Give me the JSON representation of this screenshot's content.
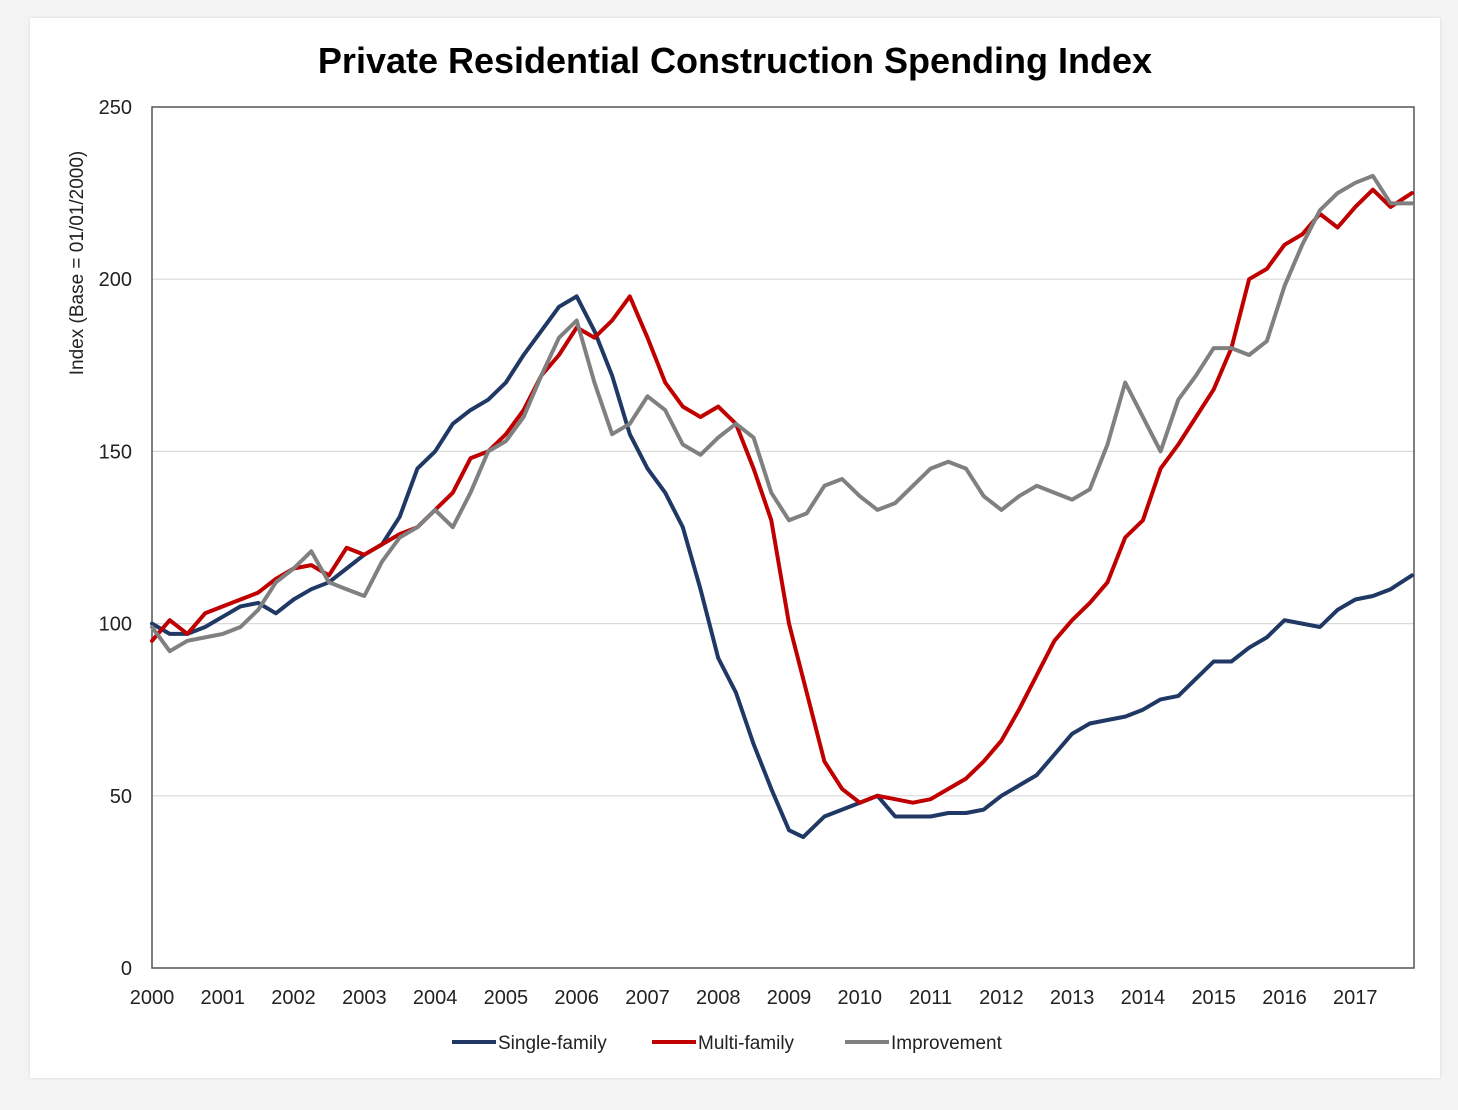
{
  "chart_data": {
    "type": "line",
    "title": "Private Residential Construction Spending Index",
    "xlabel": "",
    "ylabel": "Index  (Base = 01/01/2000)",
    "xlim": [
      2000,
      2017.83
    ],
    "ylim": [
      0,
      250
    ],
    "yticks": [
      "0",
      "50",
      "100",
      "150",
      "200",
      "250"
    ],
    "ytick_values": [
      0,
      50,
      100,
      150,
      200,
      250
    ],
    "xticks": [
      "2000",
      "2001",
      "2002",
      "2003",
      "2004",
      "2005",
      "2006",
      "2007",
      "2008",
      "2009",
      "2010",
      "2011",
      "2012",
      "2013",
      "2014",
      "2015",
      "2016",
      "2017"
    ],
    "grid": "horizontal",
    "legend_position": "bottom",
    "series": [
      {
        "name": "Single-family",
        "color": "#1f3864",
        "x": [
          2000,
          2000.25,
          2000.5,
          2000.75,
          2001,
          2001.25,
          2001.5,
          2001.75,
          2002,
          2002.25,
          2002.5,
          2002.75,
          2003,
          2003.25,
          2003.5,
          2003.75,
          2004,
          2004.25,
          2004.5,
          2004.75,
          2005,
          2005.25,
          2005.5,
          2005.75,
          2006,
          2006.25,
          2006.5,
          2006.75,
          2007,
          2007.25,
          2007.5,
          2007.75,
          2008,
          2008.25,
          2008.5,
          2008.75,
          2009,
          2009.2,
          2009.5,
          2009.75,
          2010,
          2010.25,
          2010.5,
          2010.75,
          2011,
          2011.25,
          2011.5,
          2011.75,
          2012,
          2012.25,
          2012.5,
          2012.75,
          2013,
          2013.25,
          2013.5,
          2013.75,
          2014,
          2014.25,
          2014.5,
          2014.75,
          2015,
          2015.25,
          2015.5,
          2015.75,
          2016,
          2016.25,
          2016.5,
          2016.75,
          2017,
          2017.25,
          2017.5,
          2017.8
        ],
        "y": [
          100,
          97,
          97,
          99,
          102,
          105,
          106,
          103,
          107,
          110,
          112,
          116,
          120,
          123,
          131,
          145,
          150,
          158,
          162,
          165,
          170,
          178,
          185,
          192,
          195,
          185,
          172,
          155,
          145,
          138,
          128,
          110,
          90,
          80,
          65,
          52,
          40,
          38,
          44,
          46,
          48,
          50,
          44,
          44,
          44,
          45,
          45,
          46,
          50,
          53,
          56,
          62,
          68,
          71,
          72,
          73,
          75,
          78,
          79,
          84,
          89,
          89,
          93,
          96,
          101,
          100,
          99,
          104,
          107,
          108,
          110,
          114
        ]
      },
      {
        "name": "Multi-family",
        "color": "#c00000",
        "x": [
          2000,
          2000.25,
          2000.5,
          2000.75,
          2001,
          2001.25,
          2001.5,
          2001.75,
          2002,
          2002.25,
          2002.5,
          2002.75,
          2003,
          2003.25,
          2003.5,
          2003.75,
          2004,
          2004.25,
          2004.5,
          2004.75,
          2005,
          2005.25,
          2005.5,
          2005.75,
          2006,
          2006.25,
          2006.5,
          2006.75,
          2007,
          2007.25,
          2007.5,
          2007.75,
          2008,
          2008.25,
          2008.5,
          2008.75,
          2009,
          2009.25,
          2009.5,
          2009.75,
          2010,
          2010.25,
          2010.5,
          2010.75,
          2011,
          2011.25,
          2011.5,
          2011.75,
          2012,
          2012.25,
          2012.5,
          2012.75,
          2013,
          2013.25,
          2013.5,
          2013.75,
          2014,
          2014.25,
          2014.5,
          2014.75,
          2015,
          2015.25,
          2015.5,
          2015.75,
          2016,
          2016.25,
          2016.5,
          2016.75,
          2017,
          2017.25,
          2017.5,
          2017.8
        ],
        "y": [
          95,
          101,
          97,
          103,
          105,
          107,
          109,
          113,
          116,
          117,
          114,
          122,
          120,
          123,
          126,
          128,
          133,
          138,
          148,
          150,
          155,
          162,
          172,
          178,
          186,
          183,
          188,
          195,
          183,
          170,
          163,
          160,
          163,
          158,
          145,
          130,
          100,
          80,
          60,
          52,
          48,
          50,
          49,
          48,
          49,
          52,
          55,
          60,
          66,
          75,
          85,
          95,
          101,
          106,
          112,
          125,
          130,
          145,
          152,
          160,
          168,
          180,
          200,
          203,
          210,
          213,
          219,
          215,
          221,
          226,
          221,
          225
        ]
      },
      {
        "name": "Improvement",
        "color": "#808080",
        "x": [
          2000,
          2000.25,
          2000.5,
          2000.75,
          2001,
          2001.25,
          2001.5,
          2001.75,
          2002,
          2002.25,
          2002.5,
          2002.75,
          2003,
          2003.25,
          2003.5,
          2003.75,
          2004,
          2004.25,
          2004.5,
          2004.75,
          2005,
          2005.25,
          2005.5,
          2005.75,
          2006,
          2006.25,
          2006.5,
          2006.75,
          2007,
          2007.25,
          2007.5,
          2007.75,
          2008,
          2008.25,
          2008.5,
          2008.75,
          2009,
          2009.25,
          2009.5,
          2009.75,
          2010,
          2010.25,
          2010.5,
          2010.75,
          2011,
          2011.25,
          2011.5,
          2011.75,
          2012,
          2012.25,
          2012.5,
          2012.75,
          2013,
          2013.25,
          2013.5,
          2013.75,
          2014,
          2014.25,
          2014.5,
          2014.75,
          2015,
          2015.25,
          2015.5,
          2015.75,
          2016,
          2016.25,
          2016.5,
          2016.75,
          2017,
          2017.25,
          2017.5,
          2017.8
        ],
        "y": [
          99,
          92,
          95,
          96,
          97,
          99,
          104,
          112,
          116,
          121,
          112,
          110,
          108,
          118,
          125,
          128,
          133,
          128,
          138,
          150,
          153,
          160,
          172,
          183,
          188,
          170,
          155,
          158,
          166,
          162,
          152,
          149,
          154,
          158,
          154,
          138,
          130,
          132,
          140,
          142,
          137,
          133,
          135,
          140,
          145,
          147,
          145,
          137,
          133,
          137,
          140,
          138,
          136,
          139,
          152,
          170,
          160,
          150,
          165,
          172,
          180,
          180,
          178,
          182,
          198,
          210,
          220,
          225,
          228,
          230,
          222,
          222
        ]
      }
    ]
  }
}
